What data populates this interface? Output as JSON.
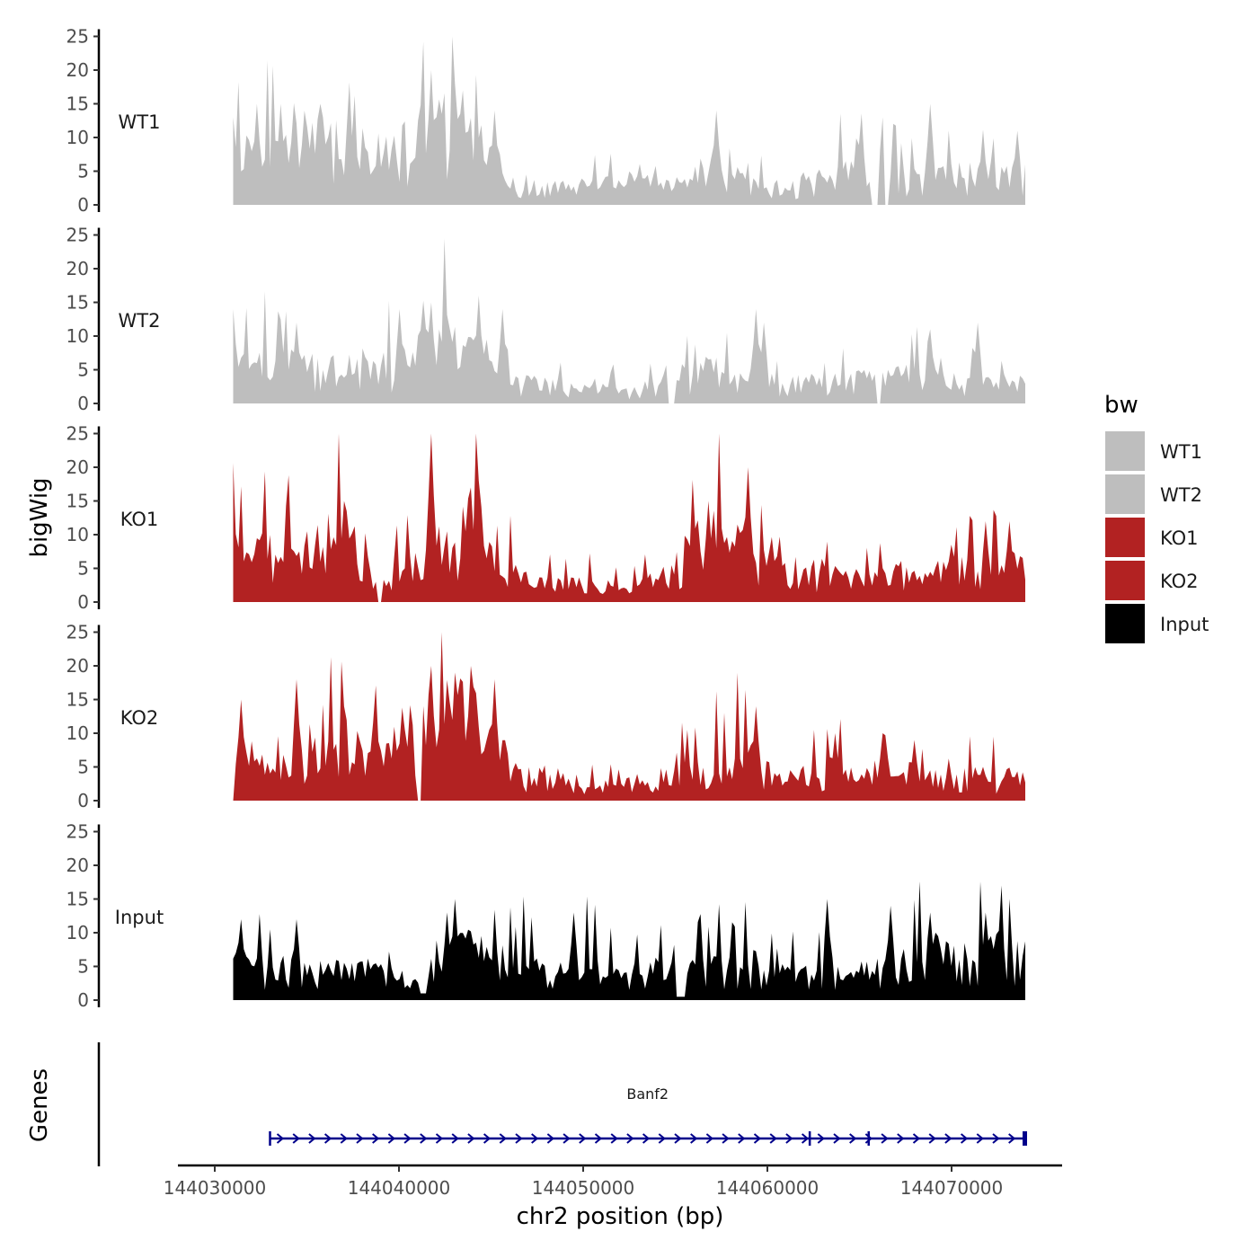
{
  "chart_data": {
    "type": "area",
    "ylabel_top": "bigWig",
    "ylabel_bottom": "Genes",
    "xlabel": "chr2 position (bp)",
    "xlim": [
      144028000,
      144076000
    ],
    "x_ticks": [
      144030000,
      144040000,
      144050000,
      144060000,
      144070000
    ],
    "x_tick_labels": [
      "144030000",
      "144040000",
      "144050000",
      "144060000",
      "144070000"
    ],
    "ylim": [
      0,
      25
    ],
    "y_ticks": [
      0,
      5,
      10,
      15,
      20,
      25
    ],
    "y_tick_labels": [
      "0",
      "5",
      "10",
      "15",
      "20",
      "25"
    ],
    "signal_range": [
      144031000,
      144074000
    ],
    "legend": {
      "title": "bw",
      "placement": "right",
      "entries": [
        {
          "label": "WT1",
          "color": "#bebebe"
        },
        {
          "label": "WT2",
          "color": "#bebebe"
        },
        {
          "label": "KO1",
          "color": "#b22222"
        },
        {
          "label": "KO2",
          "color": "#b22222"
        },
        {
          "label": "Input",
          "color": "#000000"
        }
      ]
    },
    "series": [
      {
        "name": "WT1",
        "color": "#bebebe",
        "seed": 11,
        "envelope": [
          [
            0,
            7
          ],
          [
            3,
            9
          ],
          [
            6,
            8
          ],
          [
            9,
            10
          ],
          [
            12,
            11
          ],
          [
            17,
            9
          ],
          [
            20,
            8
          ],
          [
            25,
            13
          ],
          [
            28,
            14
          ],
          [
            31,
            10
          ],
          [
            35,
            4
          ],
          [
            40,
            3
          ],
          [
            45,
            3
          ],
          [
            50,
            4
          ],
          [
            55,
            3
          ],
          [
            60,
            6
          ],
          [
            65,
            4
          ],
          [
            70,
            3
          ],
          [
            75,
            5
          ],
          [
            80,
            6
          ],
          [
            85,
            4
          ],
          [
            90,
            5
          ],
          [
            95,
            5
          ],
          [
            100,
            5
          ]
        ],
        "peaks": [
          [
            0,
            13
          ],
          [
            3,
            15
          ],
          [
            6,
            15
          ],
          [
            9,
            14
          ],
          [
            11,
            15
          ],
          [
            25,
            20
          ],
          [
            28,
            18
          ],
          [
            29,
            17
          ],
          [
            33,
            14
          ],
          [
            61,
            14
          ],
          [
            82,
            13
          ],
          [
            88,
            15
          ],
          [
            99,
            11
          ]
        ],
        "dips": [
          [
            81,
            0
          ],
          [
            82.5,
            0
          ]
        ]
      },
      {
        "name": "WT2",
        "color": "#bebebe",
        "seed": 23,
        "envelope": [
          [
            0,
            6
          ],
          [
            5,
            7
          ],
          [
            10,
            6
          ],
          [
            15,
            7
          ],
          [
            20,
            6
          ],
          [
            25,
            10
          ],
          [
            28,
            11
          ],
          [
            31,
            9
          ],
          [
            35,
            4
          ],
          [
            40,
            3
          ],
          [
            45,
            3
          ],
          [
            50,
            2
          ],
          [
            55,
            4
          ],
          [
            60,
            6
          ],
          [
            65,
            5
          ],
          [
            70,
            3
          ],
          [
            75,
            4
          ],
          [
            80,
            4
          ],
          [
            85,
            5
          ],
          [
            90,
            4
          ],
          [
            95,
            3
          ],
          [
            100,
            4
          ]
        ],
        "peaks": [
          [
            0,
            14
          ],
          [
            8,
            12
          ],
          [
            21,
            14
          ],
          [
            25,
            15
          ],
          [
            27,
            13
          ],
          [
            31,
            16
          ],
          [
            34,
            14
          ],
          [
            55,
            9
          ],
          [
            66,
            14
          ],
          [
            67,
            12
          ],
          [
            88,
            11
          ],
          [
            94,
            12
          ]
        ],
        "dips": [
          [
            55.5,
            0
          ],
          [
            81.5,
            0
          ]
        ]
      },
      {
        "name": "KO1",
        "color": "#b22222",
        "seed": 37,
        "envelope": [
          [
            0,
            8
          ],
          [
            5,
            8
          ],
          [
            10,
            9
          ],
          [
            14,
            12
          ],
          [
            18,
            6
          ],
          [
            22,
            5
          ],
          [
            25,
            13
          ],
          [
            28,
            10
          ],
          [
            30,
            15
          ],
          [
            32,
            9
          ],
          [
            36,
            4
          ],
          [
            40,
            3
          ],
          [
            45,
            3
          ],
          [
            50,
            2
          ],
          [
            55,
            5
          ],
          [
            58,
            10
          ],
          [
            60,
            11
          ],
          [
            65,
            10
          ],
          [
            68,
            6
          ],
          [
            72,
            5
          ],
          [
            75,
            5
          ],
          [
            80,
            4
          ],
          [
            85,
            5
          ],
          [
            90,
            5
          ],
          [
            95,
            6
          ],
          [
            100,
            6
          ]
        ],
        "peaks": [
          [
            0,
            16
          ],
          [
            14,
            15
          ],
          [
            25,
            25
          ],
          [
            30,
            17
          ],
          [
            31,
            18
          ],
          [
            60,
            15
          ],
          [
            65,
            20
          ],
          [
            95,
            12
          ],
          [
            98,
            12
          ]
        ],
        "dips": [
          [
            18.5,
            0
          ]
        ]
      },
      {
        "name": "KO2",
        "color": "#b22222",
        "seed": 53,
        "envelope": [
          [
            0,
            0
          ],
          [
            1,
            9
          ],
          [
            5,
            4
          ],
          [
            8,
            4
          ],
          [
            10,
            12
          ],
          [
            15,
            9
          ],
          [
            20,
            10
          ],
          [
            24,
            12
          ],
          [
            27,
            14
          ],
          [
            30,
            14
          ],
          [
            33,
            13
          ],
          [
            35,
            5
          ],
          [
            40,
            4
          ],
          [
            45,
            3
          ],
          [
            50,
            3
          ],
          [
            55,
            4
          ],
          [
            60,
            6
          ],
          [
            65,
            9
          ],
          [
            68,
            4
          ],
          [
            72,
            4
          ],
          [
            75,
            5
          ],
          [
            80,
            5
          ],
          [
            85,
            5
          ],
          [
            90,
            4
          ],
          [
            95,
            4
          ],
          [
            100,
            4
          ]
        ],
        "peaks": [
          [
            1,
            15
          ],
          [
            8,
            18
          ],
          [
            14,
            14
          ],
          [
            25,
            20
          ],
          [
            28,
            19
          ],
          [
            30,
            20
          ],
          [
            33,
            18
          ],
          [
            66,
            14
          ],
          [
            76,
            10
          ],
          [
            82,
            10
          ],
          [
            86,
            9
          ]
        ],
        "dips": [
          [
            23.5,
            0
          ]
        ]
      },
      {
        "name": "Input",
        "color": "#000000",
        "seed": 71,
        "envelope": [
          [
            0,
            8
          ],
          [
            5,
            5
          ],
          [
            7,
            2
          ],
          [
            10,
            6
          ],
          [
            15,
            5
          ],
          [
            18,
            5
          ],
          [
            21,
            4
          ],
          [
            24,
            4
          ],
          [
            26,
            9
          ],
          [
            30,
            8
          ],
          [
            35,
            6
          ],
          [
            40,
            6
          ],
          [
            45,
            6
          ],
          [
            50,
            5
          ],
          [
            55,
            5
          ],
          [
            60,
            6
          ],
          [
            65,
            6
          ],
          [
            70,
            4
          ],
          [
            75,
            4
          ],
          [
            80,
            5
          ],
          [
            85,
            7
          ],
          [
            90,
            8
          ],
          [
            95,
            8
          ],
          [
            100,
            8
          ]
        ],
        "peaks": [
          [
            1,
            12
          ],
          [
            8,
            12
          ],
          [
            27,
            13
          ],
          [
            28,
            15
          ],
          [
            43,
            13
          ],
          [
            56,
            13
          ],
          [
            75,
            15
          ],
          [
            83,
            14
          ],
          [
            88,
            13
          ],
          [
            95,
            13
          ]
        ],
        "dips": [
          [
            24,
            1
          ],
          [
            56.5,
            0.5
          ]
        ]
      }
    ],
    "genes": [
      {
        "name": "Banf2",
        "start": 144033000,
        "end": 144074000,
        "strand": "+",
        "exon_marks": [
          144033000,
          144062300,
          144065500,
          144074000
        ]
      }
    ]
  }
}
